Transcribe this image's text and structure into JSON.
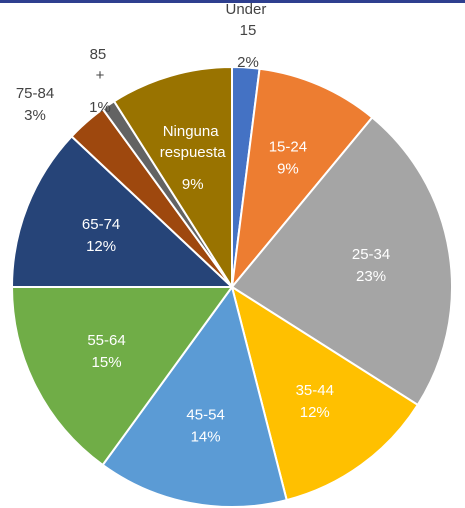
{
  "chart_data": {
    "type": "pie",
    "categories": [
      "Under 15",
      "15-24",
      "25-34",
      "35-44",
      "45-54",
      "55-64",
      "65-74",
      "75-84",
      "85 +",
      "Ninguna respuesta"
    ],
    "values": [
      2,
      9,
      23,
      12,
      14,
      15,
      12,
      3,
      1,
      9
    ],
    "value_labels": [
      "2%",
      "9%",
      "23%",
      "12%",
      "14%",
      "15%",
      "12%",
      "3%",
      "1%",
      "9%"
    ],
    "colors": [
      "#4472c4",
      "#ed7d31",
      "#a5a5a5",
      "#ffc000",
      "#5b9bd5",
      "#70ad47",
      "#264478",
      "#9e480e",
      "#636363",
      "#997300"
    ]
  }
}
